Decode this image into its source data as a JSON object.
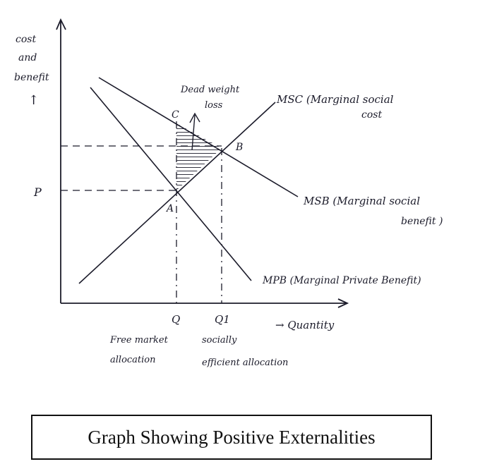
{
  "axes": {
    "y_label_lines": [
      "cost",
      "and",
      "benefit"
    ],
    "y_arrow": "↑",
    "x_label": "→ Quantity"
  },
  "price": {
    "label": "P"
  },
  "points": {
    "A": "A",
    "B": "B",
    "C": "C"
  },
  "quantities": {
    "Q": "Q",
    "Q1": "Q1"
  },
  "allocations": {
    "free_market_lines": [
      "Free market",
      "allocation"
    ],
    "socially_efficient_lines": [
      "socially",
      "efficient allocation"
    ]
  },
  "deadweight_loss_lines": [
    "Dead weight",
    "loss"
  ],
  "curves": {
    "msc_lines": [
      "MSC (Marginal social",
      "cost"
    ],
    "msb_lines": [
      "MSB (Marginal social",
      "benefit )"
    ],
    "mpb": "MPB (Marginal Private Benefit)"
  },
  "caption": "Graph Showing Positive Externalities",
  "colors": {
    "ink": "#1b1b2a",
    "caption_border": "#111111"
  }
}
